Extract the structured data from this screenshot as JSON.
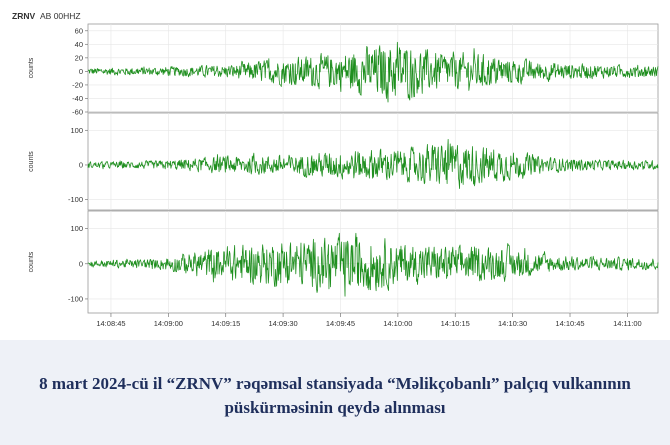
{
  "chart_data": {
    "type": "line",
    "station_label": "ZRNV",
    "channel_label": "AB 00HHZ",
    "ylabel": "counts",
    "x_ticks": [
      "14:08:45",
      "14:09:00",
      "14:09:15",
      "14:09:30",
      "14:09:45",
      "14:10:00",
      "14:10:15",
      "14:10:30",
      "14:10:45",
      "14:11:00"
    ],
    "x_range": [
      "14:08:39",
      "14:11:08"
    ],
    "panels": [
      {
        "name": "",
        "y_ticks": [
          60,
          40,
          20,
          0,
          -20,
          -40,
          -60
        ],
        "ylim": [
          -60,
          70
        ],
        "color": "#1f8f1f",
        "amplitude_envelope": [
          [
            0,
            8
          ],
          [
            0.12,
            10
          ],
          [
            0.25,
            15
          ],
          [
            0.32,
            28
          ],
          [
            0.44,
            42
          ],
          [
            0.54,
            70
          ],
          [
            0.6,
            45
          ],
          [
            0.7,
            38
          ],
          [
            0.79,
            22
          ],
          [
            0.9,
            15
          ],
          [
            1,
            14
          ]
        ]
      },
      {
        "name": "",
        "y_ticks": [
          100,
          0,
          -100
        ],
        "ylim": [
          -130,
          150
        ],
        "color": "#1f8f1f",
        "amplitude_envelope": [
          [
            0,
            14
          ],
          [
            0.12,
            18
          ],
          [
            0.25,
            40
          ],
          [
            0.36,
            45
          ],
          [
            0.48,
            70
          ],
          [
            0.56,
            70
          ],
          [
            0.63,
            110
          ],
          [
            0.72,
            75
          ],
          [
            0.8,
            35
          ],
          [
            0.9,
            22
          ],
          [
            1,
            20
          ]
        ]
      },
      {
        "name": "",
        "y_ticks": [
          100,
          0,
          -100
        ],
        "ylim": [
          -140,
          150
        ],
        "color": "#1f8f1f",
        "amplitude_envelope": [
          [
            0,
            14
          ],
          [
            0.12,
            22
          ],
          [
            0.22,
            70
          ],
          [
            0.32,
            95
          ],
          [
            0.4,
            110
          ],
          [
            0.48,
            130
          ],
          [
            0.56,
            85
          ],
          [
            0.66,
            75
          ],
          [
            0.74,
            70
          ],
          [
            0.82,
            35
          ],
          [
            0.92,
            28
          ],
          [
            1,
            26
          ]
        ]
      }
    ]
  },
  "caption": "8 mart 2024-cü il “ZRNV” rəqəmsal stansiyada “Məlikçobanlı” palçıq vulkanının püskürməsinin qeydə alınması"
}
